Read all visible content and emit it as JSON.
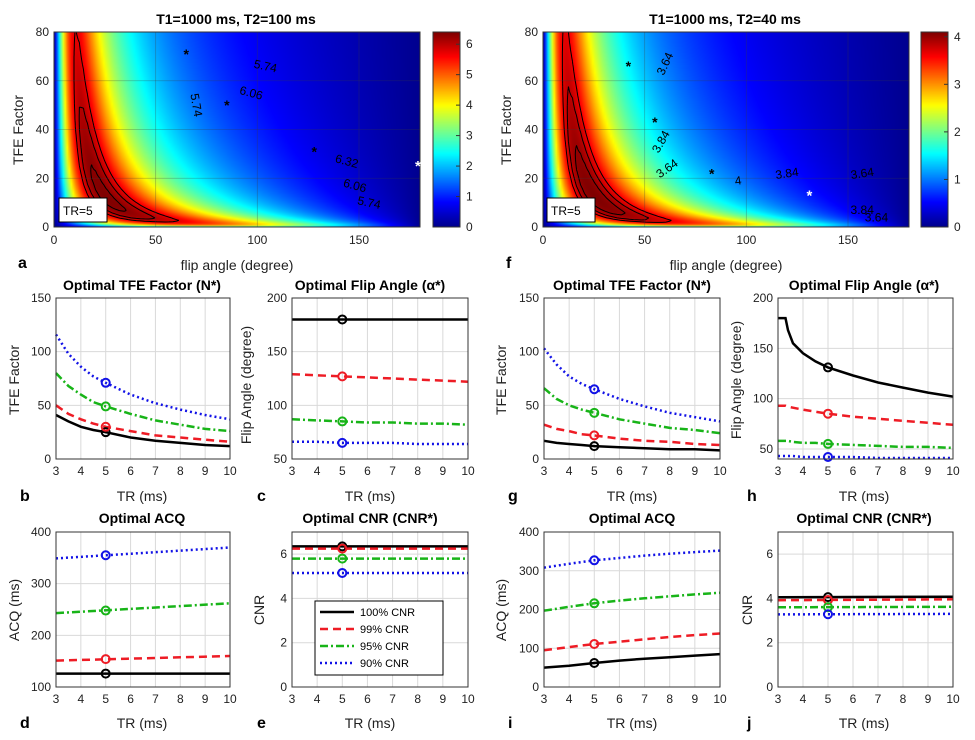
{
  "figure": {
    "colormap": [
      "#00008f",
      "#0000ff",
      "#0080ff",
      "#00ffff",
      "#80ff80",
      "#ffff00",
      "#ff8000",
      "#ff0000",
      "#800000"
    ],
    "series_colors": {
      "100% CNR": "#000000",
      "99% CNR": "#ee1c25",
      "95% CNR": "#18b418",
      "90% CNR": "#1212e6"
    },
    "legend": [
      "100% CNR",
      "99% CNR",
      "95% CNR",
      "90% CNR"
    ]
  },
  "chart_data": [
    {
      "id": "a",
      "panel_letter": "a",
      "type": "heatmap",
      "title": "T1=1000 ms, T2=100 ms",
      "xlabel": "flip angle (degree)",
      "ylabel": "TFE Factor",
      "xlim": [
        0,
        180
      ],
      "ylim": [
        0,
        80
      ],
      "xticks": [
        0,
        50,
        100,
        150
      ],
      "yticks": [
        0,
        20,
        40,
        60,
        80
      ],
      "T2": 100,
      "cmax": 6.4,
      "colorbar": {
        "clim": [
          0,
          6.4
        ],
        "ticks": [
          0,
          1,
          2,
          3,
          4,
          5,
          6
        ]
      },
      "contour_levels": [
        5.74,
        6.06,
        6.32
      ],
      "contour_labels": [
        {
          "text": "5.74",
          "x": 104,
          "y": 66,
          "rot": 12
        },
        {
          "text": "5.74",
          "x": 70,
          "y": 50,
          "rot": 80
        },
        {
          "text": "6.06",
          "x": 97,
          "y": 55,
          "rot": 15
        },
        {
          "text": "6.32",
          "x": 144,
          "y": 27,
          "rot": 15
        },
        {
          "text": "6.06",
          "x": 148,
          "y": 17,
          "rot": 15
        },
        {
          "text": "5.74",
          "x": 155,
          "y": 10,
          "rot": 12
        }
      ],
      "markers": [
        {
          "x": 65,
          "y": 71
        },
        {
          "x": 85,
          "y": 50
        },
        {
          "x": 128,
          "y": 31
        }
      ],
      "white_marker": {
        "x": 179,
        "y": 25
      },
      "annotation": "TR=5"
    },
    {
      "id": "f",
      "panel_letter": "f",
      "type": "heatmap",
      "title": "T1=1000 ms, T2=40 ms",
      "xlabel": "flip angle (degree)",
      "ylabel": "TFE Factor",
      "xlim": [
        0,
        180
      ],
      "ylim": [
        0,
        80
      ],
      "xticks": [
        0,
        50,
        100,
        150
      ],
      "yticks": [
        0,
        20,
        40,
        60,
        80
      ],
      "T2": 40,
      "cmax": 4.1,
      "colorbar": {
        "clim": [
          0,
          4.1
        ],
        "ticks": [
          0,
          1,
          2,
          3,
          4
        ]
      },
      "contour_levels": [
        3.64,
        3.84,
        4.0
      ],
      "contour_labels": [
        {
          "text": "3.64",
          "x": 60,
          "y": 67,
          "rot": -65
        },
        {
          "text": "3.84",
          "x": 58,
          "y": 35,
          "rot": -60
        },
        {
          "text": "3.64",
          "x": 61,
          "y": 24,
          "rot": -35
        },
        {
          "text": "3.84",
          "x": 120,
          "y": 22,
          "rot": -8
        },
        {
          "text": "4",
          "x": 96,
          "y": 19,
          "rot": -8
        },
        {
          "text": "3.64",
          "x": 157,
          "y": 22,
          "rot": -8
        },
        {
          "text": "3.84",
          "x": 157,
          "y": 7,
          "rot": 0
        },
        {
          "text": "3.64",
          "x": 164,
          "y": 4,
          "rot": 0
        }
      ],
      "markers": [
        {
          "x": 42,
          "y": 66
        },
        {
          "x": 55,
          "y": 43
        },
        {
          "x": 83,
          "y": 22
        }
      ],
      "white_marker": {
        "x": 131,
        "y": 13
      },
      "annotation": "TR=5"
    },
    {
      "id": "b",
      "panel_letter": "b",
      "type": "line",
      "title": "Optimal TFE Factor (N*)",
      "xlabel": "TR (ms)",
      "ylabel": "TFE Factor",
      "xlim": [
        3,
        10
      ],
      "ylim": [
        0,
        150
      ],
      "xticks": [
        3,
        4,
        5,
        6,
        7,
        8,
        9,
        10
      ],
      "yticks": [
        0,
        50,
        100,
        150
      ],
      "x": [
        3,
        3.5,
        4,
        4.5,
        5,
        6,
        7,
        8,
        9,
        10
      ],
      "series": [
        {
          "name": "100% CNR",
          "values": [
            41,
            35,
            30,
            27,
            25,
            20,
            17,
            15,
            13,
            12
          ]
        },
        {
          "name": "99% CNR",
          "values": [
            50,
            42,
            37,
            33,
            30,
            26,
            22,
            20,
            18,
            16
          ]
        },
        {
          "name": "95% CNR",
          "values": [
            80,
            68,
            60,
            53,
            49,
            42,
            36,
            32,
            28,
            26
          ]
        },
        {
          "name": "90% CNR",
          "values": [
            116,
            98,
            86,
            77,
            71,
            60,
            52,
            46,
            41,
            37
          ]
        }
      ],
      "marker_x": 5
    },
    {
      "id": "c",
      "panel_letter": "c",
      "type": "line",
      "title": "Optimal Flip Angle (α*)",
      "xlabel": "TR (ms)",
      "ylabel": "Flip Angle (degree)",
      "xlim": [
        3,
        10
      ],
      "ylim": [
        50,
        200
      ],
      "xticks": [
        3,
        4,
        5,
        6,
        7,
        8,
        9,
        10
      ],
      "yticks": [
        50,
        100,
        150,
        200
      ],
      "x": [
        3,
        4,
        5,
        6,
        7,
        8,
        9,
        10
      ],
      "series": [
        {
          "name": "100% CNR",
          "values": [
            180,
            180,
            180,
            180,
            180,
            180,
            180,
            180
          ]
        },
        {
          "name": "99% CNR",
          "values": [
            129,
            128,
            127,
            126,
            125,
            124,
            123,
            122
          ]
        },
        {
          "name": "95% CNR",
          "values": [
            87,
            86,
            85,
            84,
            84,
            83,
            83,
            82
          ]
        },
        {
          "name": "90% CNR",
          "values": [
            66,
            66,
            65,
            65,
            65,
            64,
            64,
            64
          ]
        }
      ],
      "marker_x": 5
    },
    {
      "id": "d",
      "panel_letter": "d",
      "type": "line",
      "title": "Optimal ACQ",
      "xlabel": "TR (ms)",
      "ylabel": "ACQ (ms)",
      "xlim": [
        3,
        10
      ],
      "ylim": [
        100,
        400
      ],
      "xticks": [
        3,
        4,
        5,
        6,
        7,
        8,
        9,
        10
      ],
      "yticks": [
        100,
        200,
        300,
        400
      ],
      "x": [
        3,
        10
      ],
      "series": [
        {
          "name": "100% CNR",
          "values": [
            126,
            126
          ]
        },
        {
          "name": "99% CNR",
          "values": [
            151,
            160
          ]
        },
        {
          "name": "95% CNR",
          "values": [
            243,
            262
          ]
        },
        {
          "name": "90% CNR",
          "values": [
            349,
            370
          ]
        }
      ],
      "marker_x": 5,
      "marker_values": [
        126,
        154,
        248,
        355
      ]
    },
    {
      "id": "e",
      "panel_letter": "e",
      "type": "line",
      "title": "Optimal CNR (CNR*)",
      "xlabel": "TR (ms)",
      "ylabel": "CNR",
      "xlim": [
        3,
        10
      ],
      "ylim": [
        0,
        7
      ],
      "xticks": [
        3,
        4,
        5,
        6,
        7,
        8,
        9,
        10
      ],
      "yticks": [
        0,
        2,
        4,
        6
      ],
      "x": [
        3,
        10
      ],
      "series": [
        {
          "name": "100% CNR",
          "values": [
            6.35,
            6.35
          ]
        },
        {
          "name": "99% CNR",
          "values": [
            6.25,
            6.25
          ]
        },
        {
          "name": "95% CNR",
          "values": [
            5.8,
            5.8
          ]
        },
        {
          "name": "90% CNR",
          "values": [
            5.15,
            5.15
          ]
        }
      ],
      "marker_x": 5,
      "legend_location": "bottom-center"
    },
    {
      "id": "g",
      "panel_letter": "g",
      "type": "line",
      "title": "Optimal TFE Factor (N*)",
      "xlabel": "TR (ms)",
      "ylabel": "TFE Factor",
      "xlim": [
        3,
        10
      ],
      "ylim": [
        0,
        150
      ],
      "xticks": [
        3,
        4,
        5,
        6,
        7,
        8,
        9,
        10
      ],
      "yticks": [
        0,
        50,
        100,
        150
      ],
      "x": [
        3,
        3.5,
        4,
        4.5,
        5,
        6,
        7,
        8,
        9,
        10
      ],
      "series": [
        {
          "name": "100% CNR",
          "values": [
            17,
            15,
            14,
            13,
            12,
            11,
            10,
            9,
            9,
            8
          ]
        },
        {
          "name": "99% CNR",
          "values": [
            32,
            28,
            26,
            23,
            22,
            19,
            17,
            16,
            14,
            13
          ]
        },
        {
          "name": "95% CNR",
          "values": [
            66,
            56,
            50,
            46,
            43,
            37,
            33,
            29,
            27,
            24
          ]
        },
        {
          "name": "90% CNR",
          "values": [
            103,
            88,
            77,
            70,
            65,
            56,
            49,
            43,
            39,
            35
          ]
        }
      ],
      "marker_x": 5
    },
    {
      "id": "h",
      "panel_letter": "h",
      "type": "line",
      "title": "Optimal Flip Angle (α*)",
      "xlabel": "TR (ms)",
      "ylabel": "Flip Angle (degree)",
      "xlim": [
        3,
        10
      ],
      "ylim": [
        40,
        200
      ],
      "xticks": [
        3,
        4,
        5,
        6,
        7,
        8,
        9,
        10
      ],
      "yticks": [
        50,
        100,
        150,
        200
      ],
      "x": [
        3,
        3.3,
        3.4,
        3.6,
        4,
        4.5,
        5,
        6,
        7,
        8,
        9,
        10
      ],
      "series": [
        {
          "name": "100% CNR",
          "values": [
            180,
            180,
            168,
            155,
            145,
            137,
            131,
            123,
            116,
            111,
            106,
            102
          ]
        },
        {
          "name": "99% CNR",
          "values": [
            93,
            93,
            92,
            91,
            89,
            87,
            85,
            82,
            80,
            78,
            76,
            74
          ]
        },
        {
          "name": "95% CNR",
          "values": [
            58,
            58,
            58,
            57,
            56,
            56,
            55,
            54,
            53,
            52,
            52,
            51
          ]
        },
        {
          "name": "90% CNR",
          "values": [
            43,
            43,
            43,
            43,
            42,
            42,
            42,
            42,
            41,
            41,
            41,
            41
          ]
        }
      ],
      "marker_x": 5
    },
    {
      "id": "i",
      "panel_letter": "i",
      "type": "line",
      "title": "Optimal ACQ",
      "xlabel": "TR (ms)",
      "ylabel": "ACQ (ms)",
      "xlim": [
        3,
        10
      ],
      "ylim": [
        0,
        400
      ],
      "xticks": [
        3,
        4,
        5,
        6,
        7,
        8,
        9,
        10
      ],
      "yticks": [
        0,
        100,
        200,
        300,
        400
      ],
      "x": [
        3,
        4,
        5,
        6,
        7,
        8,
        9,
        10
      ],
      "series": [
        {
          "name": "100% CNR",
          "values": [
            50,
            55,
            62,
            68,
            73,
            77,
            81,
            85
          ]
        },
        {
          "name": "99% CNR",
          "values": [
            95,
            103,
            111,
            117,
            123,
            129,
            134,
            138
          ]
        },
        {
          "name": "95% CNR",
          "values": [
            197,
            207,
            216,
            223,
            229,
            234,
            239,
            243
          ]
        },
        {
          "name": "90% CNR",
          "values": [
            308,
            318,
            327,
            333,
            339,
            344,
            348,
            352
          ]
        }
      ],
      "marker_x": 5
    },
    {
      "id": "j",
      "panel_letter": "j",
      "type": "line",
      "title": "Optimal CNR (CNR*)",
      "xlabel": "TR (ms)",
      "ylabel": "CNR",
      "xlim": [
        3,
        10
      ],
      "ylim": [
        0,
        7
      ],
      "xticks": [
        3,
        4,
        5,
        6,
        7,
        8,
        9,
        10
      ],
      "yticks": [
        0,
        2,
        4,
        6
      ],
      "x": [
        3,
        10
      ],
      "series": [
        {
          "name": "100% CNR",
          "values": [
            4.05,
            4.08
          ]
        },
        {
          "name": "99% CNR",
          "values": [
            3.92,
            3.96
          ]
        },
        {
          "name": "95% CNR",
          "values": [
            3.6,
            3.62
          ]
        },
        {
          "name": "90% CNR",
          "values": [
            3.28,
            3.3
          ]
        }
      ],
      "marker_x": 5
    }
  ]
}
